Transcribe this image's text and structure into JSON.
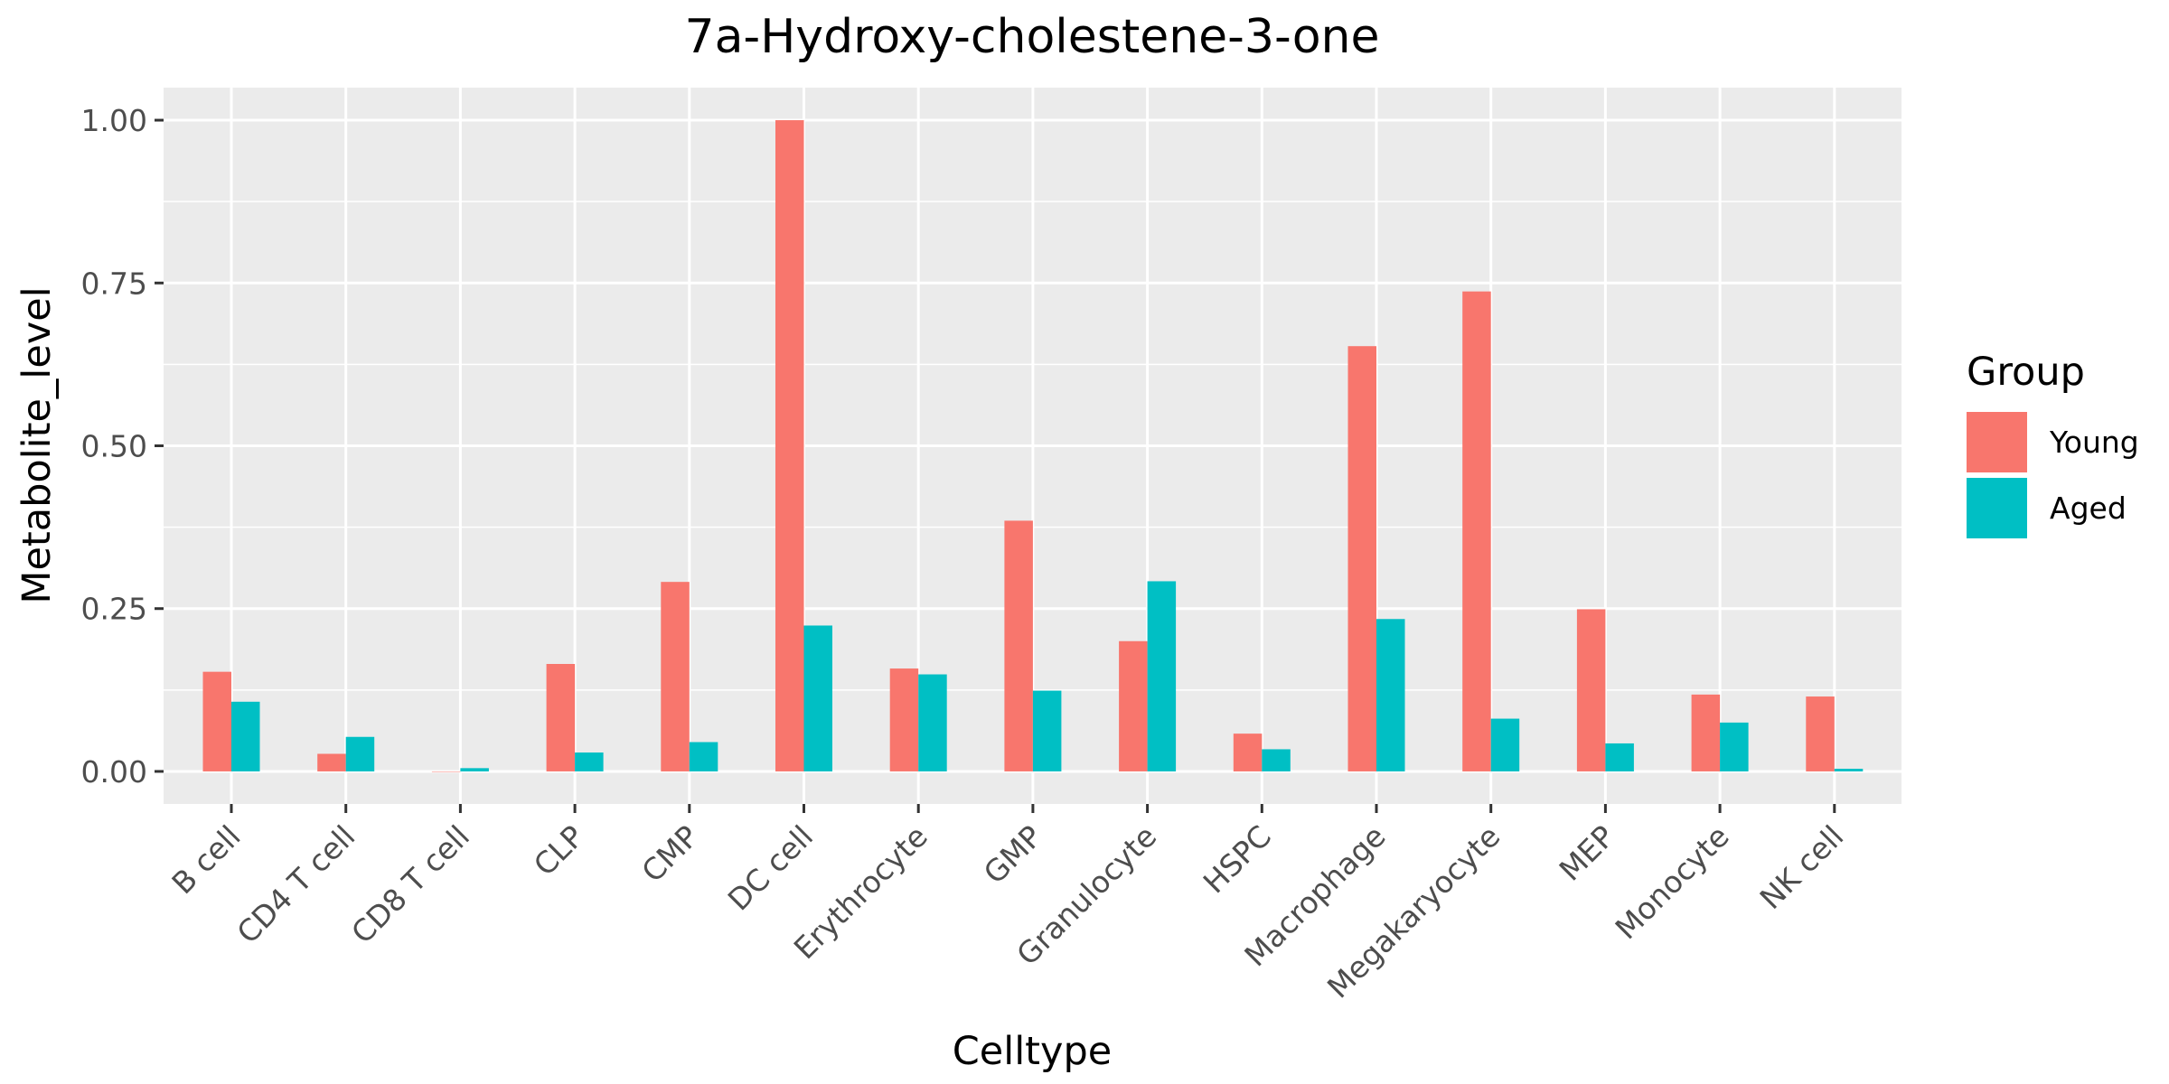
{
  "chart_data": {
    "type": "bar",
    "title": "7a-Hydroxy-cholestene-3-one",
    "xlabel": "Celltype",
    "ylabel": "Metabolite_level",
    "ylim": [
      -0.05,
      1.05
    ],
    "yticks": [
      0,
      0.25,
      0.5,
      0.75,
      1.0
    ],
    "ytick_labels": [
      "0.00",
      "0.25",
      "0.50",
      "0.75",
      "1.00"
    ],
    "grid": true,
    "legend": {
      "title": "Group",
      "position": "right"
    },
    "categories": [
      "B cell",
      "CD4 T cell",
      "CD8 T cell",
      "CLP",
      "CMP",
      "DC cell",
      "Erythrocyte",
      "GMP",
      "Granulocyte",
      "HSPC",
      "Macrophage",
      "Megakaryocyte",
      "MEP",
      "Monocyte",
      "NK cell"
    ],
    "series": [
      {
        "name": "Young",
        "color": "#F8766D",
        "values": [
          0.153,
          0.027,
          0.0,
          0.165,
          0.291,
          1.0,
          0.158,
          0.385,
          0.2,
          0.058,
          0.653,
          0.737,
          0.249,
          0.118,
          0.115
        ]
      },
      {
        "name": "Aged",
        "color": "#00BFC4",
        "values": [
          0.107,
          0.053,
          0.005,
          0.029,
          0.045,
          0.224,
          0.149,
          0.124,
          0.292,
          0.034,
          0.234,
          0.081,
          0.043,
          0.075,
          0.004
        ]
      }
    ]
  }
}
